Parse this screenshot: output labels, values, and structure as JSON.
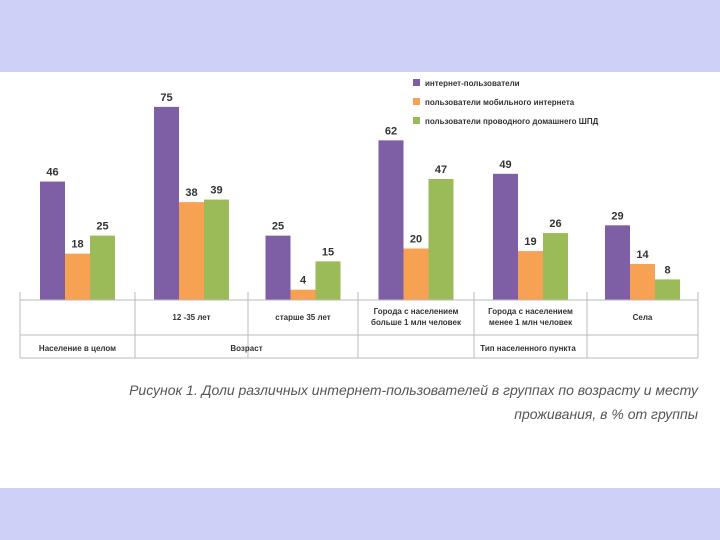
{
  "caption": {
    "line1": "Рисунок 1. Доли различных интернет-пользователей в группах по возрасту и месту",
    "line2": "проживания, в % от группы"
  },
  "colors": {
    "band": "#cdd0f7",
    "internet": "#7e5fa6",
    "mobile": "#f7a252",
    "wired": "#9bbb59"
  },
  "chart_data": {
    "type": "bar",
    "title": "",
    "ylim": [
      0,
      80
    ],
    "grid": false,
    "legend_position": "top-right",
    "series": [
      {
        "name": "интернет-пользователи",
        "values": [
          46,
          75,
          25,
          62,
          49,
          29
        ]
      },
      {
        "name": "пользователи мобильного интернета",
        "values": [
          18,
          38,
          4,
          20,
          19,
          14
        ]
      },
      {
        "name": "пользователи проводного домашнего ШПД",
        "values": [
          25,
          39,
          15,
          47,
          26,
          8
        ]
      }
    ],
    "categories": [
      "",
      "12 -35 лет",
      "старше 35 лет",
      "Города с населением больше 1 млн человек",
      "Города с населением менее 1 млн человек",
      "Села"
    ],
    "groups": [
      {
        "label": "Население в целом",
        "span": [
          0,
          0
        ]
      },
      {
        "label": "Возраст",
        "span": [
          1,
          2
        ]
      },
      {
        "label": "Тип населенного пункта",
        "span": [
          3,
          5
        ]
      }
    ]
  }
}
